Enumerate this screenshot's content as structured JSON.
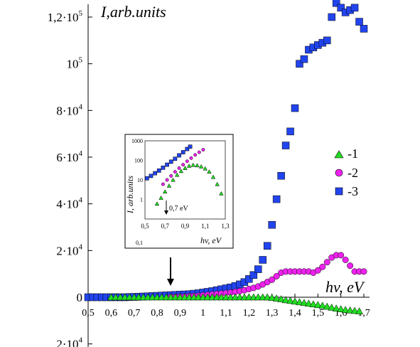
{
  "chart_data": {
    "type": "scatter",
    "ylabel": "I,arb.units",
    "xlabel": "hv, eV",
    "xlim": [
      0.5,
      1.7
    ],
    "ylim": [
      -20000,
      128000
    ],
    "x_ticks": [
      "0,5",
      "0,6",
      "0,7",
      "0,8",
      "0,9",
      "1",
      "1,1",
      "1,2",
      "1,3",
      "1,4",
      "1,5",
      "1,6",
      "1,7"
    ],
    "y_ticks": [
      {
        "value": 120000,
        "base": "1,2·10",
        "exp": "5"
      },
      {
        "value": 100000,
        "base": "10",
        "exp": "5"
      },
      {
        "value": 80000,
        "base": "8·10",
        "exp": "4"
      },
      {
        "value": 60000,
        "base": "6·10",
        "exp": "4"
      },
      {
        "value": 40000,
        "base": "4·10",
        "exp": "4"
      },
      {
        "value": 20000,
        "base": "2·10",
        "exp": "4"
      },
      {
        "value": 0,
        "base": "0",
        "exp": ""
      },
      {
        "value": -20000,
        "base": "2·10",
        "exp": "4"
      }
    ],
    "legend_position": "right",
    "series": [
      {
        "name": "-1",
        "marker": "triangle",
        "color": "#22dd22",
        "x": [
          0.6,
          0.62,
          0.64,
          0.66,
          0.68,
          0.7,
          0.72,
          0.74,
          0.76,
          0.78,
          0.8,
          0.82,
          0.84,
          0.86,
          0.88,
          0.9,
          0.92,
          0.94,
          0.96,
          0.98,
          1.0,
          1.02,
          1.04,
          1.06,
          1.08,
          1.1,
          1.12,
          1.14,
          1.16,
          1.18,
          1.2,
          1.22,
          1.24,
          1.26,
          1.28,
          1.3,
          1.32,
          1.34,
          1.36,
          1.38,
          1.4,
          1.42,
          1.44,
          1.46,
          1.48,
          1.5,
          1.52,
          1.54,
          1.56,
          1.58,
          1.6,
          1.62,
          1.64,
          1.66,
          1.68
        ],
        "y": [
          0,
          0,
          0,
          0,
          0,
          0,
          0,
          0,
          0,
          0,
          0,
          0,
          0,
          0,
          0,
          0,
          0,
          0,
          0,
          0,
          0,
          0,
          0,
          0,
          0,
          0,
          0,
          0,
          0,
          0,
          0,
          0,
          0,
          0,
          0,
          -200,
          -500,
          -800,
          -1200,
          -1500,
          -1800,
          -2100,
          -2400,
          -2700,
          -3000,
          -3300,
          -3600,
          -4000,
          -4400,
          -4800,
          -5100,
          -5400,
          -5600,
          -5800,
          -6000
        ]
      },
      {
        "name": "-2",
        "marker": "circle",
        "color": "#ee22ee",
        "x": [
          0.86,
          0.88,
          0.9,
          0.92,
          0.94,
          0.96,
          0.98,
          1.0,
          1.02,
          1.04,
          1.06,
          1.08,
          1.1,
          1.12,
          1.14,
          1.16,
          1.18,
          1.2,
          1.22,
          1.24,
          1.26,
          1.28,
          1.3,
          1.32,
          1.34,
          1.36,
          1.38,
          1.4,
          1.42,
          1.44,
          1.46,
          1.48,
          1.5,
          1.52,
          1.54,
          1.56,
          1.58,
          1.6,
          1.62,
          1.64,
          1.66,
          1.68,
          1.7
        ],
        "y": [
          100,
          150,
          200,
          300,
          400,
          500,
          600,
          800,
          1000,
          1200,
          1400,
          1600,
          1800,
          2000,
          2300,
          2600,
          3000,
          3500,
          4000,
          4600,
          5500,
          6500,
          7500,
          9000,
          10500,
          11000,
          11000,
          11000,
          11000,
          11000,
          11000,
          10500,
          11500,
          13000,
          15000,
          17000,
          18000,
          18000,
          16000,
          13500,
          11000,
          11000,
          11000
        ]
      },
      {
        "name": "-3",
        "marker": "square",
        "color": "#2244ee",
        "x": [
          0.5,
          0.52,
          0.54,
          0.56,
          0.58,
          0.6,
          0.62,
          0.64,
          0.66,
          0.68,
          0.7,
          0.72,
          0.74,
          0.76,
          0.78,
          0.8,
          0.82,
          0.84,
          0.86,
          0.88,
          0.9,
          0.92,
          0.94,
          0.96,
          0.98,
          1.0,
          1.02,
          1.04,
          1.06,
          1.08,
          1.1,
          1.12,
          1.14,
          1.16,
          1.18,
          1.2,
          1.22,
          1.24,
          1.26,
          1.28,
          1.3,
          1.32,
          1.34,
          1.36,
          1.38,
          1.4,
          1.42,
          1.44,
          1.46,
          1.48,
          1.5,
          1.52,
          1.54,
          1.56,
          1.58,
          1.6,
          1.62,
          1.64,
          1.66,
          1.68,
          1.7
        ],
        "y": [
          0,
          0,
          0,
          0,
          0,
          0,
          0,
          0,
          0,
          100,
          150,
          200,
          300,
          400,
          500,
          600,
          700,
          800,
          900,
          1000,
          1100,
          1200,
          1300,
          1500,
          1700,
          2000,
          2300,
          2600,
          3000,
          3400,
          3800,
          4200,
          4800,
          5500,
          6500,
          7800,
          9500,
          12000,
          16000,
          22000,
          31000,
          42000,
          52000,
          65000,
          71000,
          81000,
          100000,
          102000,
          106000,
          107000,
          108000,
          109000,
          110000,
          120000,
          126000,
          124000,
          122000,
          123000,
          124000,
          118000,
          115000
        ]
      }
    ],
    "inset": {
      "ylabel": "I, arb.units",
      "xlabel": "hv, eV",
      "x_ticks": [
        "0,5",
        "0,7",
        "0,9",
        "1,1",
        "1,3"
      ],
      "y_ticks": [
        "1000",
        "100",
        "10",
        "1",
        "0,1"
      ],
      "annotation": "0,7 eV",
      "xlim": [
        0.5,
        1.3
      ],
      "ylog": true,
      "ylim": [
        0.1,
        1000
      ]
    },
    "annotation_arrow_x": 0.86
  }
}
